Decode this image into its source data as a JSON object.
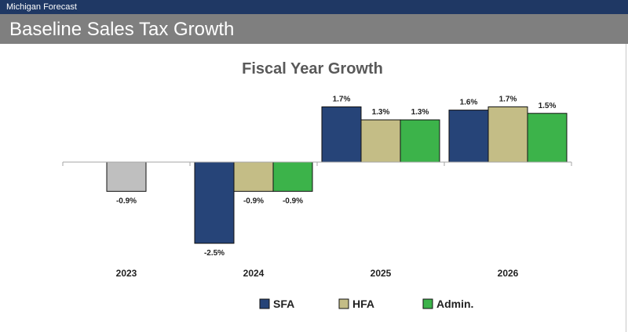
{
  "header": {
    "subtitle": "Michigan Forecast",
    "title": "Baseline Sales Tax Growth"
  },
  "chart_data": {
    "type": "bar",
    "title": "Fiscal Year Growth",
    "categories": [
      "2023",
      "2024",
      "2025",
      "2026"
    ],
    "series": [
      {
        "name": "SFA",
        "color": "#264478",
        "values": [
          null,
          -2.5,
          1.7,
          1.6
        ],
        "labels": [
          null,
          "-2.5%",
          "1.7%",
          "1.6%"
        ]
      },
      {
        "name": "HFA",
        "color": "#c4bd86",
        "values": [
          -0.9,
          -0.9,
          1.3,
          1.7
        ],
        "labels": [
          "-0.9%",
          "-0.9%",
          "1.3%",
          "1.7%"
        ]
      },
      {
        "name": "Admin.",
        "color": "#3cb34a",
        "values": [
          null,
          -0.9,
          1.3,
          1.5
        ],
        "labels": [
          null,
          "-0.9%",
          "1.3%",
          "1.5%"
        ]
      }
    ],
    "bar_colors_override": {
      "2023": {
        "HFA": "#bfbfbf"
      }
    },
    "legend_position": "bottom",
    "grid": false
  }
}
